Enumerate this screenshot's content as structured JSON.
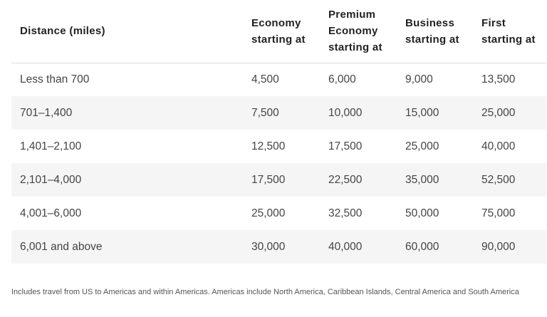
{
  "table": {
    "headers": {
      "distance": "Distance (miles)",
      "economy": "Economy starting at",
      "premium_economy": "Premium Economy starting at",
      "business": "Business starting at",
      "first": "First starting at"
    },
    "rows": [
      {
        "distance": "Less than 700",
        "economy": "4,500",
        "premium_economy": "6,000",
        "business": "9,000",
        "first": "13,500"
      },
      {
        "distance": "701–1,400",
        "economy": "7,500",
        "premium_economy": "10,000",
        "business": "15,000",
        "first": "25,000"
      },
      {
        "distance": "1,401–2,100",
        "economy": "12,500",
        "premium_economy": "17,500",
        "business": "25,000",
        "first": "40,000"
      },
      {
        "distance": "2,101–4,000",
        "economy": "17,500",
        "premium_economy": "22,500",
        "business": "35,000",
        "first": "52,500"
      },
      {
        "distance": "4,001–6,000",
        "economy": "25,000",
        "premium_economy": "32,500",
        "business": "50,000",
        "first": "75,000"
      },
      {
        "distance": "6,001 and above",
        "economy": "30,000",
        "premium_economy": "40,000",
        "business": "60,000",
        "first": "90,000"
      }
    ]
  },
  "footnote": "Includes travel from US to Americas and within Americas. Americas include North America, Caribbean Islands, Central America and South America",
  "colors": {
    "stripe": "#f5f5f5",
    "header_text": "#222222",
    "body_text": "#444444"
  }
}
